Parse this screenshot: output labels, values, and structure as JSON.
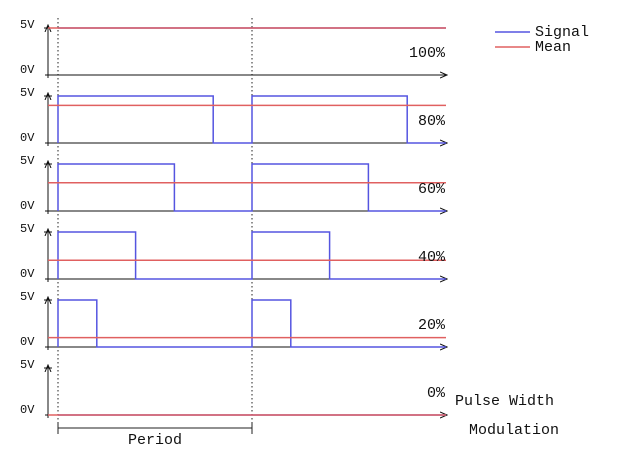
{
  "legend": {
    "signal": "Signal",
    "mean": "Mean"
  },
  "panels": [
    {
      "high": "5V",
      "low": "0V",
      "duty": 100,
      "duty_label": "100%"
    },
    {
      "high": "5V",
      "low": "0V",
      "duty": 80,
      "duty_label": "80%"
    },
    {
      "high": "5V",
      "low": "0V",
      "duty": 60,
      "duty_label": "60%"
    },
    {
      "high": "5V",
      "low": "0V",
      "duty": 40,
      "duty_label": "40%"
    },
    {
      "high": "5V",
      "low": "0V",
      "duty": 20,
      "duty_label": "20%"
    },
    {
      "high": "5V",
      "low": "0V",
      "duty": 0,
      "duty_label": "0%"
    }
  ],
  "period_label": "Period",
  "caption": [
    "Pulse Width",
    "Modulation"
  ]
}
